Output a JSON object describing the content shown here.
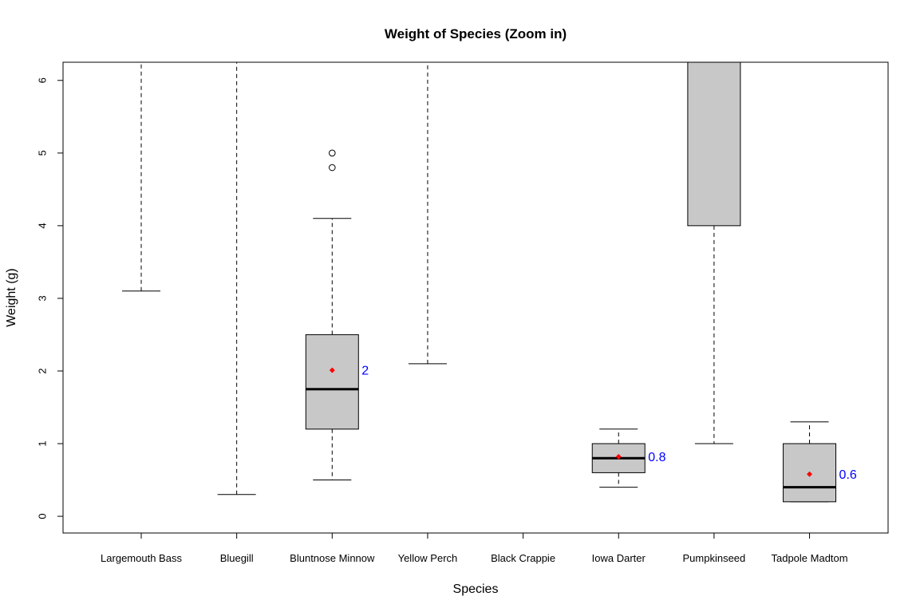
{
  "chart_data": {
    "type": "boxplot",
    "title": "Weight of Species (Zoom in)",
    "xlabel": "Species",
    "ylabel": "Weight (g)",
    "ylim": [
      -0.23,
      6.25
    ],
    "yticks": [
      0,
      1,
      2,
      3,
      4,
      5,
      6
    ],
    "box_fill": "#c8c8c8",
    "mean_color": "#ff0000",
    "annotation_color": "#0000ff",
    "categories": [
      "Largemouth Bass",
      "Bluegill",
      "Bluntnose Minnow",
      "Yellow Perch",
      "Black Crappie",
      "Iowa Darter",
      "Pumpkinseed",
      "Tadpole Madtom"
    ],
    "boxes": [
      {
        "whisker_low": 3.1,
        "q1": null,
        "median": null,
        "q3": null,
        "whisker_high": null,
        "mean": null,
        "outliers": [],
        "label": null
      },
      {
        "whisker_low": 0.3,
        "q1": null,
        "median": null,
        "q3": null,
        "whisker_high": null,
        "mean": null,
        "outliers": [],
        "label": null
      },
      {
        "whisker_low": 0.5,
        "q1": 1.2,
        "median": 1.75,
        "q3": 2.5,
        "whisker_high": 4.1,
        "mean": 2.01,
        "outliers": [
          4.8,
          5.0
        ],
        "label": "2"
      },
      {
        "whisker_low": 2.1,
        "q1": null,
        "median": null,
        "q3": null,
        "whisker_high": null,
        "mean": null,
        "outliers": [],
        "label": null
      },
      null,
      {
        "whisker_low": 0.4,
        "q1": 0.6,
        "median": 0.8,
        "q3": 1.0,
        "whisker_high": 1.2,
        "mean": 0.82,
        "outliers": [],
        "label": "0.8"
      },
      {
        "whisker_low": 1.0,
        "q1": 4.0,
        "median": null,
        "q3": null,
        "whisker_high": null,
        "mean": null,
        "outliers": [],
        "label": null
      },
      {
        "whisker_low": 0.2,
        "q1": 0.2,
        "median": 0.4,
        "q3": 1.0,
        "whisker_high": 1.3,
        "mean": 0.58,
        "outliers": [],
        "label": "0.6"
      }
    ]
  }
}
